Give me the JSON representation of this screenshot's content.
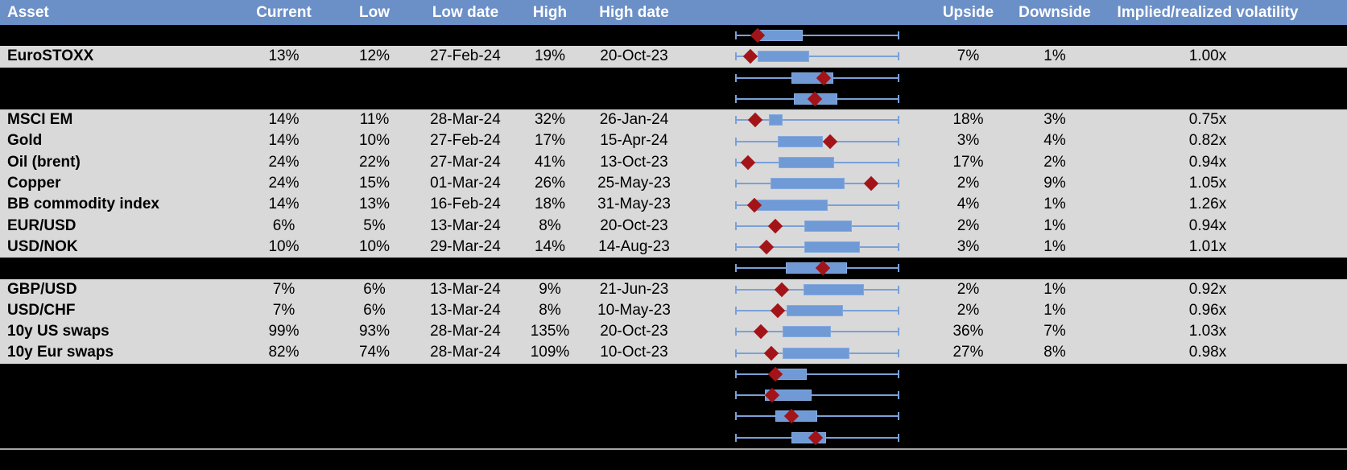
{
  "colors": {
    "header_bg": "#6b8fc7",
    "header_text": "#ffffff",
    "row_bg": "#d9d9d9",
    "hidden_row_bg": "#000000",
    "text": "#000000",
    "box_fill": "#6f9ad6",
    "box_border": "#85a9dd",
    "whisker": "#7aa0d8",
    "marker": "#a31418",
    "divider": "#a6a6a6"
  },
  "chart_meta": {
    "type": "box-whisker-sparklines",
    "description": "Each row shows a horizontal whisker spanning the full volatility range with a blue box (inner range) and a dark-red diamond marking the current level; positions are normalized 0-1 across the whisker.",
    "range": [
      0,
      1
    ],
    "legend_position": "none"
  },
  "table": {
    "columns": [
      {
        "key": "asset",
        "label": "Asset"
      },
      {
        "key": "current",
        "label": "Current"
      },
      {
        "key": "low",
        "label": "Low"
      },
      {
        "key": "low_date",
        "label": "Low date"
      },
      {
        "key": "high",
        "label": "High"
      },
      {
        "key": "high_date",
        "label": "High date"
      },
      {
        "key": "chart",
        "label": ""
      },
      {
        "key": "upside",
        "label": "Upside"
      },
      {
        "key": "downside",
        "label": "Downside"
      },
      {
        "key": "iv_rv",
        "label": "Implied/realized volatility"
      }
    ],
    "rows": [
      {
        "kind": "spacer",
        "plot": {
          "box_start": 0.141,
          "box_end": 0.413,
          "marker": 0.136
        }
      },
      {
        "kind": "data",
        "cells": {
          "asset": "EuroSTOXX",
          "current": "13%",
          "low": "12%",
          "low_date": "27-Feb-24",
          "high": "19%",
          "high_date": "20-Oct-23",
          "upside": "7%",
          "downside": "1%",
          "iv_rv": "1.00x"
        },
        "plot": {
          "box_start": 0.137,
          "box_end": 0.451,
          "marker": 0.095
        }
      },
      {
        "kind": "spacer",
        "plot": {
          "box_start": 0.345,
          "box_end": 0.598,
          "marker": 0.538
        }
      },
      {
        "kind": "spacer",
        "plot": {
          "box_start": 0.356,
          "box_end": 0.623,
          "marker": 0.484
        }
      },
      {
        "kind": "data",
        "cells": {
          "asset": "MSCI EM",
          "current": "14%",
          "low": "11%",
          "low_date": "28-Mar-24",
          "high": "32%",
          "high_date": "26-Jan-24",
          "upside": "18%",
          "downside": "3%",
          "iv_rv": "0.75x"
        },
        "plot": {
          "box_start": 0.206,
          "box_end": 0.291,
          "marker": 0.121
        }
      },
      {
        "kind": "data",
        "cells": {
          "asset": "Gold",
          "current": "14%",
          "low": "10%",
          "low_date": "27-Feb-24",
          "high": "17%",
          "high_date": "15-Apr-24",
          "upside": "3%",
          "downside": "4%",
          "iv_rv": "0.82x"
        },
        "plot": {
          "box_start": 0.258,
          "box_end": 0.536,
          "marker": 0.577
        }
      },
      {
        "kind": "data",
        "cells": {
          "asset": "Oil (brent)",
          "current": "24%",
          "low": "22%",
          "low_date": "27-Mar-24",
          "high": "41%",
          "high_date": "13-Oct-23",
          "upside": "17%",
          "downside": "2%",
          "iv_rv": "0.94x"
        },
        "plot": {
          "box_start": 0.263,
          "box_end": 0.605,
          "marker": 0.08
        }
      },
      {
        "kind": "data",
        "cells": {
          "asset": "Copper",
          "current": "24%",
          "low": "15%",
          "low_date": "01-Mar-24",
          "high": "26%",
          "high_date": "25-May-23",
          "upside": "2%",
          "downside": "9%",
          "iv_rv": "1.05x"
        },
        "plot": {
          "box_start": 0.214,
          "box_end": 0.667,
          "marker": 0.827
        }
      },
      {
        "kind": "data",
        "cells": {
          "asset": "BB commodity index",
          "current": "14%",
          "low": "13%",
          "low_date": "16-Feb-24",
          "high": "18%",
          "high_date": "31-May-23",
          "upside": "4%",
          "downside": "1%",
          "iv_rv": "1.26x"
        },
        "plot": {
          "box_start": 0.108,
          "box_end": 0.562,
          "marker": 0.116
        }
      },
      {
        "kind": "data",
        "cells": {
          "asset": "EUR/USD",
          "current": "6%",
          "low": "5%",
          "low_date": "13-Mar-24",
          "high": "8%",
          "high_date": "20-Oct-23",
          "upside": "2%",
          "downside": "1%",
          "iv_rv": "0.94x"
        },
        "plot": {
          "box_start": 0.423,
          "box_end": 0.712,
          "marker": 0.244
        }
      },
      {
        "kind": "data",
        "cells": {
          "asset": "USD/NOK",
          "current": "10%",
          "low": "10%",
          "low_date": "29-Mar-24",
          "high": "14%",
          "high_date": "14-Aug-23",
          "upside": "3%",
          "downside": "1%",
          "iv_rv": "1.01x"
        },
        "plot": {
          "box_start": 0.423,
          "box_end": 0.761,
          "marker": 0.19
        }
      },
      {
        "kind": "spacer",
        "plot": {
          "box_start": 0.309,
          "box_end": 0.68,
          "marker": 0.533
        }
      },
      {
        "kind": "data",
        "cells": {
          "asset": "GBP/USD",
          "current": "7%",
          "low": "6%",
          "low_date": "13-Mar-24",
          "high": "9%",
          "high_date": "21-Jun-23",
          "upside": "2%",
          "downside": "1%",
          "iv_rv": "0.92x"
        },
        "plot": {
          "box_start": 0.415,
          "box_end": 0.786,
          "marker": 0.283
        }
      },
      {
        "kind": "data",
        "cells": {
          "asset": "USD/CHF",
          "current": "7%",
          "low": "6%",
          "low_date": "13-Mar-24",
          "high": "8%",
          "high_date": "10-May-23",
          "upside": "2%",
          "downside": "1%",
          "iv_rv": "0.96x"
        },
        "plot": {
          "box_start": 0.312,
          "box_end": 0.655,
          "marker": 0.258
        }
      },
      {
        "kind": "data",
        "cells": {
          "asset": "10y US swaps",
          "current": "99%",
          "low": "93%",
          "low_date": "28-Mar-24",
          "high": "135%",
          "high_date": "20-Oct-23",
          "upside": "36%",
          "downside": "7%",
          "iv_rv": "1.03x"
        },
        "plot": {
          "box_start": 0.291,
          "box_end": 0.582,
          "marker": 0.157
        }
      },
      {
        "kind": "data",
        "cells": {
          "asset": "10y Eur swaps",
          "current": "82%",
          "low": "74%",
          "low_date": "28-Mar-24",
          "high": "109%",
          "high_date": "10-Oct-23",
          "upside": "27%",
          "downside": "8%",
          "iv_rv": "0.98x"
        },
        "plot": {
          "box_start": 0.288,
          "box_end": 0.696,
          "marker": 0.219
        }
      },
      {
        "kind": "spacer",
        "plot": {
          "box_start": 0.255,
          "box_end": 0.435,
          "marker": 0.244
        }
      },
      {
        "kind": "spacer",
        "plot": {
          "box_start": 0.181,
          "box_end": 0.467,
          "marker": 0.227
        }
      },
      {
        "kind": "spacer",
        "plot": {
          "box_start": 0.244,
          "box_end": 0.5,
          "marker": 0.345
        }
      },
      {
        "kind": "spacer",
        "plot": {
          "box_start": 0.345,
          "box_end": 0.554,
          "marker": 0.492
        }
      }
    ]
  }
}
